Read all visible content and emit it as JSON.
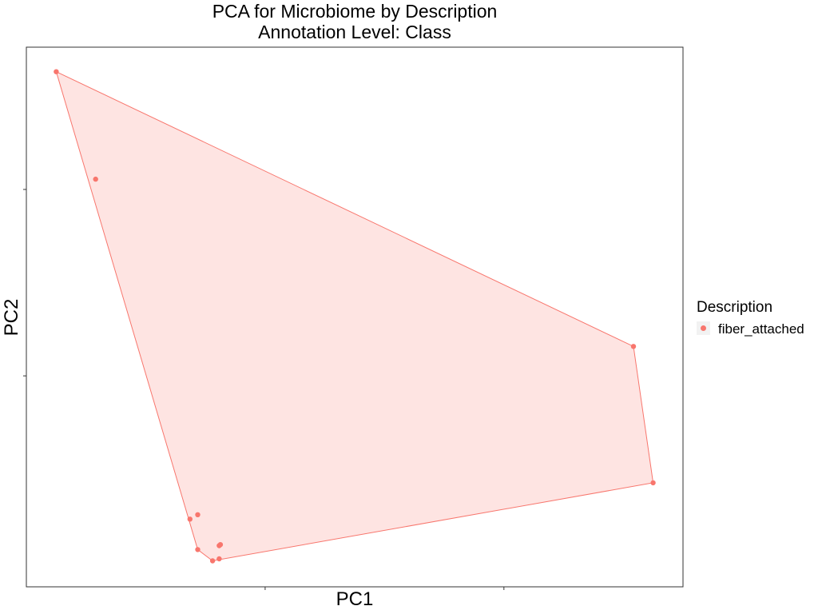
{
  "chart_data": {
    "type": "scatter",
    "title": "PCA for Microbiome by Description",
    "subtitle": "Annotation Level: Class",
    "xlabel": "PC1",
    "ylabel": "PC2",
    "xlim": [
      -0.05,
      1.05
    ],
    "ylim": [
      -0.05,
      1.05
    ],
    "x_ticks": [
      0.35,
      0.75
    ],
    "y_ticks": [
      0.38,
      0.76
    ],
    "grid": false,
    "legend": {
      "title": "Description",
      "placement": "right",
      "entries": [
        {
          "label": "fiber_attached",
          "color": "#F8766D"
        }
      ]
    },
    "hull": true,
    "series": [
      {
        "name": "fiber_attached",
        "color": "#F8766D",
        "x": [
          0.0,
          0.066,
          0.967,
          1.0,
          0.224,
          0.237,
          0.237,
          0.273,
          0.275,
          0.273,
          0.262
        ],
        "y": [
          1.0,
          0.781,
          0.44,
          0.162,
          0.088,
          0.097,
          0.026,
          0.034,
          0.036,
          0.007,
          0.003
        ]
      }
    ]
  }
}
